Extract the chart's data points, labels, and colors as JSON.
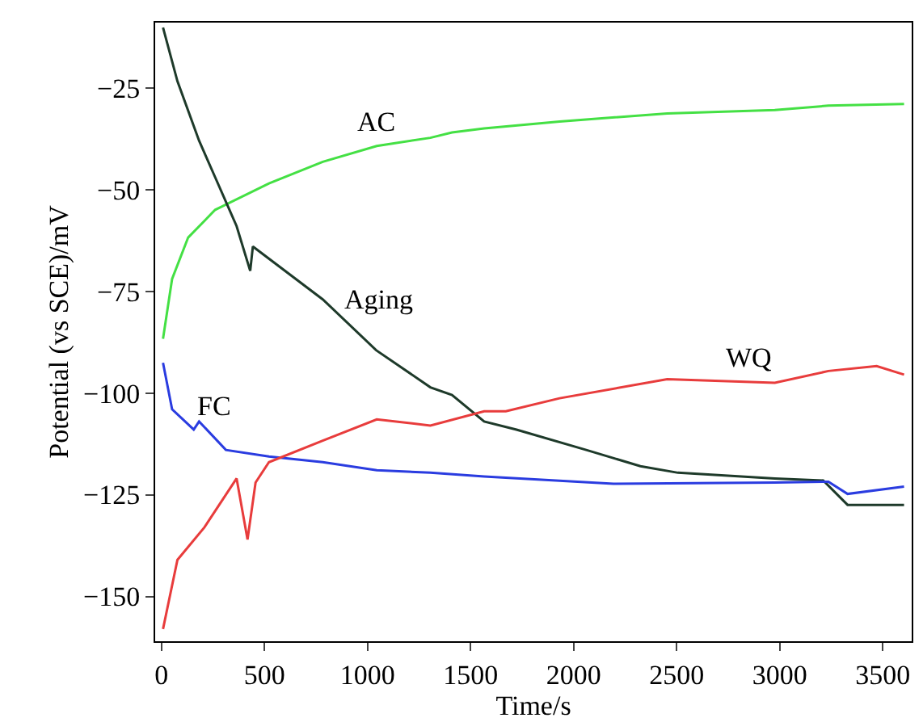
{
  "chart_data": {
    "type": "line",
    "xlabel": "Time/s",
    "ylabel": "Potential (vs SCE)/mV",
    "xlim": [
      -30,
      3640
    ],
    "ylim": [
      -161,
      -9
    ],
    "xticks": [
      0,
      500,
      1000,
      1500,
      2000,
      2500,
      3000,
      3500
    ],
    "yticks": [
      -150,
      -125,
      -100,
      -75,
      -50,
      -25
    ],
    "legend": false,
    "marker": "none",
    "line_style": "solid",
    "series": [
      {
        "name": "AC",
        "color": "#44e044",
        "x": [
          8,
          52,
          130,
          261,
          522,
          783,
          1045,
          1305,
          1410,
          1566,
          1932,
          2454,
          2976,
          3236,
          3603
        ],
        "values": [
          -86.7,
          -72,
          -61.8,
          -55,
          -48.5,
          -43.2,
          -39.3,
          -37.3,
          -36,
          -35,
          -33.3,
          -31.3,
          -30.5,
          -29.4,
          -29
        ]
      },
      {
        "name": "Aging",
        "color": "#1e3a2a",
        "x": [
          8,
          78,
          183,
          261,
          365,
          431,
          444,
          783,
          1042,
          1305,
          1410,
          1566,
          1723,
          2061,
          2324,
          2506,
          2976,
          3211,
          3329,
          3603
        ],
        "values": [
          -10.2,
          -23.4,
          -38,
          -47,
          -59,
          -70,
          -64,
          -77,
          -89.5,
          -98.6,
          -100.5,
          -107,
          -109,
          -114,
          -118,
          -119.6,
          -121,
          -121.5,
          -127.5,
          -127.5
        ]
      },
      {
        "name": "FC",
        "color": "#2a3ce0",
        "x": [
          8,
          52,
          157,
          183,
          313,
          522,
          783,
          1045,
          1305,
          1566,
          2193,
          2976,
          3236,
          3329,
          3603
        ],
        "values": [
          -92.6,
          -104,
          -109,
          -107,
          -114,
          -115.6,
          -117,
          -119,
          -119.6,
          -120.5,
          -122.3,
          -122,
          -121.8,
          -124.8,
          -123
        ]
      },
      {
        "name": "WQ",
        "color": "#e83c3c",
        "x": [
          8,
          78,
          209,
          365,
          418,
          457,
          522,
          783,
          1045,
          1305,
          1566,
          1671,
          1932,
          2454,
          2976,
          3236,
          3470,
          3603
        ],
        "values": [
          -158,
          -141,
          -133,
          -121,
          -136,
          -122,
          -117,
          -111.7,
          -106.5,
          -108,
          -104.5,
          -104.5,
          -101.3,
          -96.6,
          -97.5,
          -94.6,
          -93.4,
          -95.5
        ]
      }
    ]
  }
}
